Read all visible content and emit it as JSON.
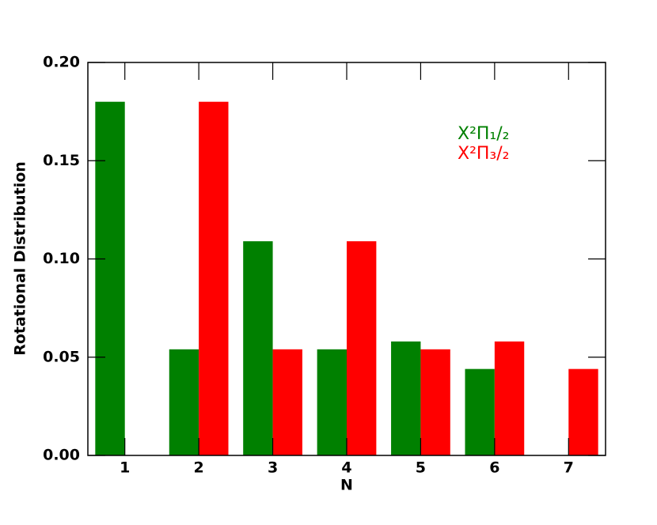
{
  "chart_data": {
    "type": "bar",
    "x_label": "N",
    "y_label": "Rotational Distribution",
    "x": [
      1,
      2,
      3,
      4,
      5,
      6,
      7
    ],
    "series": [
      {
        "name": "X²Π₁/₂",
        "color": "#008000",
        "values": [
          0.18,
          0.054,
          0.109,
          0.054,
          0.058,
          0.044,
          null
        ]
      },
      {
        "name": "X²Π₃/₂",
        "color": "#ff0000",
        "values": [
          null,
          0.18,
          0.054,
          0.109,
          0.054,
          0.058,
          0.044
        ]
      }
    ],
    "xlim": [
      0.5,
      7.5
    ],
    "xticks": [
      1,
      2,
      3,
      4,
      5,
      6,
      7
    ],
    "ylim": [
      0,
      0.2
    ],
    "yticks": [
      {
        "value": 0,
        "label": "0.00"
      },
      {
        "value": 0.05,
        "label": "0.05"
      },
      {
        "value": 0.1,
        "label": "0.10"
      },
      {
        "value": 0.15,
        "label": "0.15"
      },
      {
        "value": 0.2,
        "label": "0.20"
      }
    ],
    "grid": false
  }
}
